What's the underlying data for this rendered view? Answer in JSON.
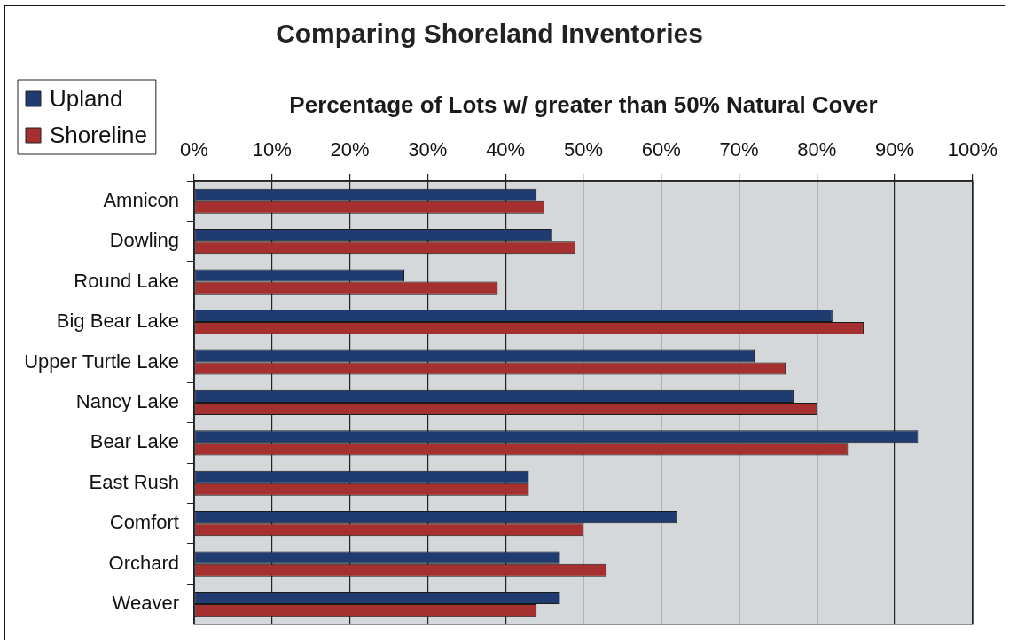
{
  "chart_data": {
    "type": "bar",
    "orientation": "horizontal",
    "title": "Comparing Shoreland Inventories",
    "xlabel": "Percentage of Lots w/ greater than 50% Natural Cover",
    "categories": [
      "Amnicon",
      "Dowling",
      "Round Lake",
      "Big Bear Lake",
      "Upper Turtle Lake",
      "Nancy Lake",
      "Bear Lake",
      "East Rush",
      "Comfort",
      "Orchard",
      "Weaver"
    ],
    "series": [
      {
        "name": "Upland",
        "color": "#1f3b6f",
        "values": [
          44,
          46,
          27,
          82,
          72,
          77,
          93,
          43,
          62,
          47,
          47
        ]
      },
      {
        "name": "Shoreline",
        "color": "#a5302f",
        "values": [
          45,
          49,
          39,
          86,
          76,
          80,
          84,
          43,
          50,
          53,
          44
        ]
      }
    ],
    "xlim": [
      0,
      100
    ],
    "xticks": [
      {
        "value": 0,
        "label": "0%"
      },
      {
        "value": 10,
        "label": "10%"
      },
      {
        "value": 20,
        "label": "20%"
      },
      {
        "value": 30,
        "label": "30%"
      },
      {
        "value": 40,
        "label": "40%"
      },
      {
        "value": 50,
        "label": "50%"
      },
      {
        "value": 60,
        "label": "60%"
      },
      {
        "value": 70,
        "label": "70%"
      },
      {
        "value": 80,
        "label": "80%"
      },
      {
        "value": 90,
        "label": "90%"
      },
      {
        "value": 100,
        "label": "100%"
      }
    ],
    "grid": "x",
    "legend": "top left"
  }
}
